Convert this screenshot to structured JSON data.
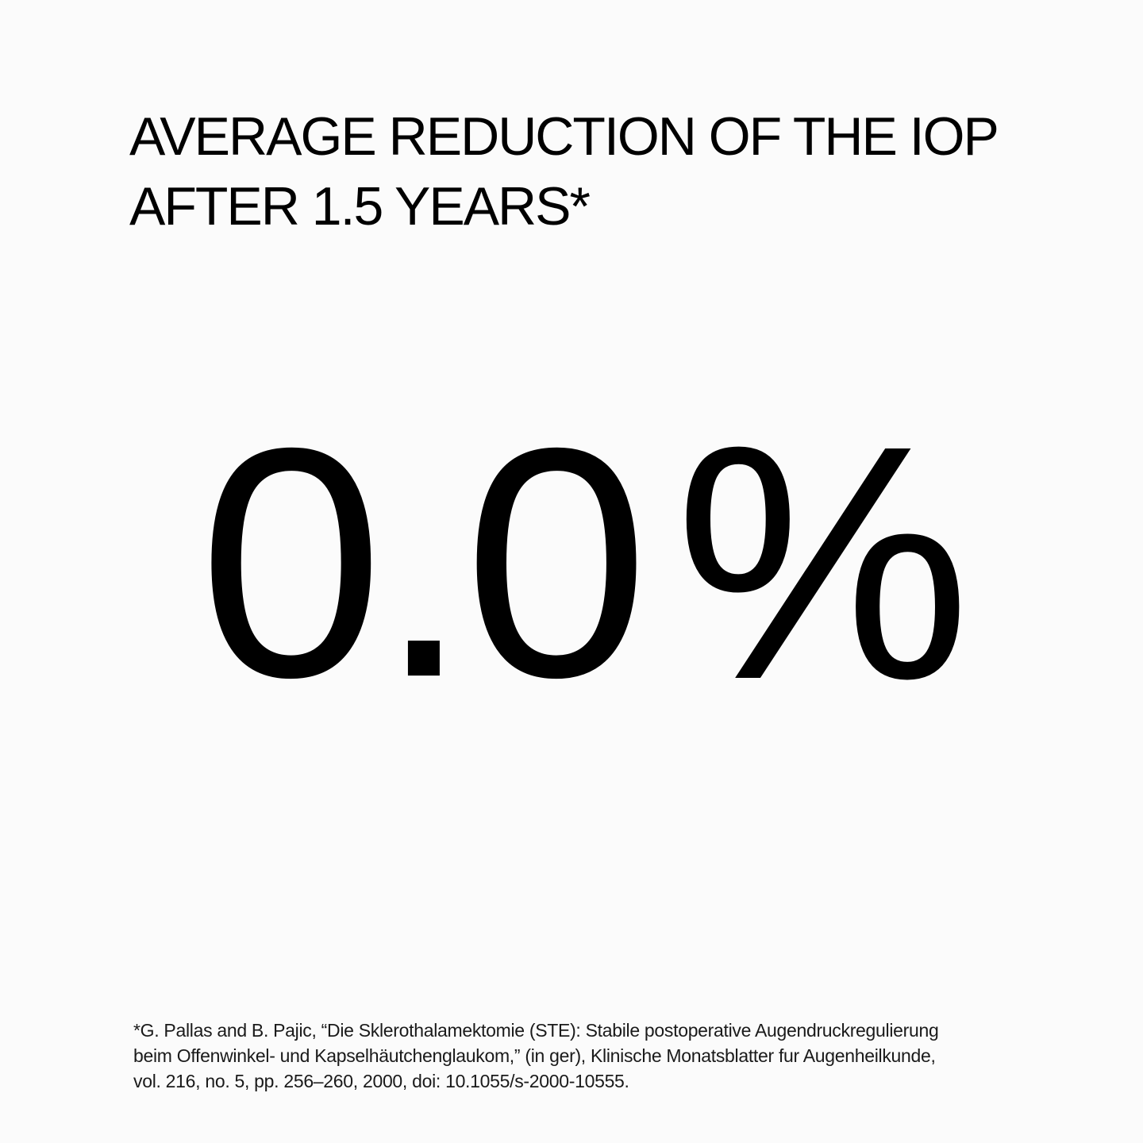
{
  "title": {
    "line1": "AVERAGE REDUCTION OF THE IOP",
    "line2": "AFTER 1.5 YEARS*"
  },
  "stat": {
    "value": "0.0",
    "unit": "%"
  },
  "footnote": {
    "line1": "*G. Pallas and B. Pajic, “Die Sklerothalamektomie (STE): Stabile postoperative Augendruckregulierung",
    "line2": "beim Offenwinkel- und Kapselhäutchenglaukom,” (in ger), Klinische Monatsblatter fur Augenheilkunde,",
    "line3": "vol. 216, no. 5, pp. 256–260, 2000, doi: 10.1055/s-2000-10555."
  },
  "colors": {
    "background": "#fbfbfb",
    "text": "#000000"
  }
}
